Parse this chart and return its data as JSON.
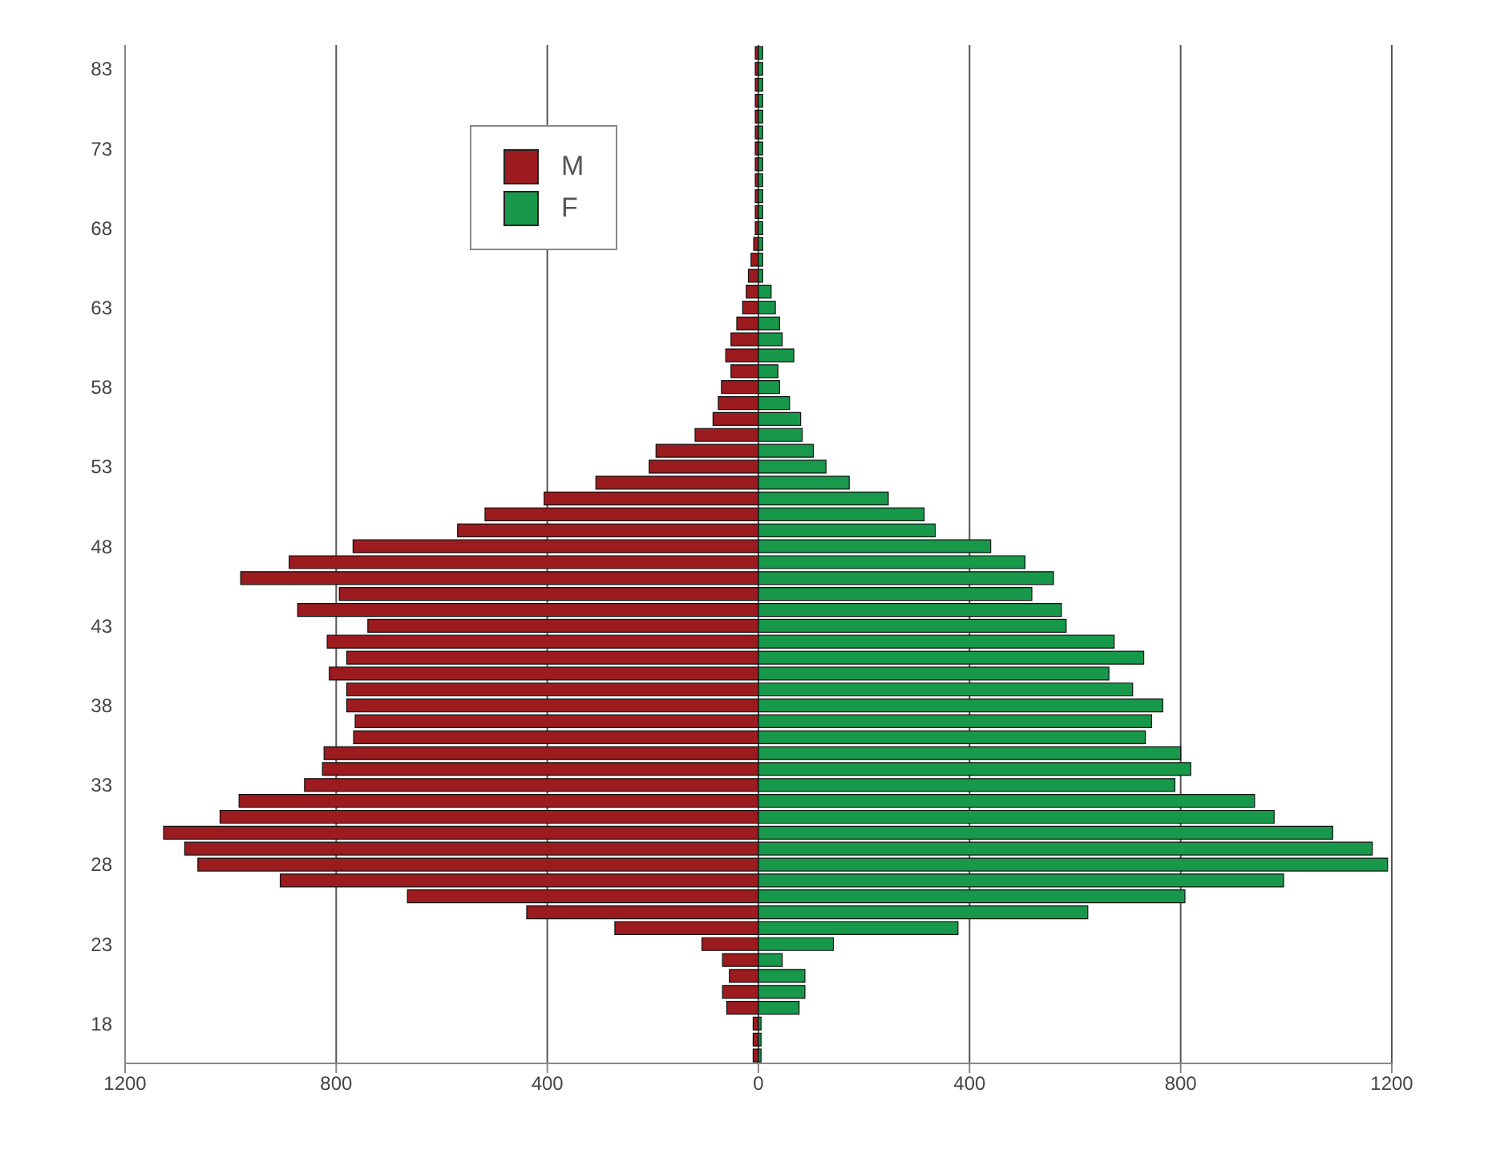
{
  "chart_data": {
    "type": "bar",
    "orientation": "horizontal",
    "stacked": true,
    "categories": [
      null,
      "83",
      null,
      null,
      null,
      null,
      "73",
      null,
      null,
      null,
      null,
      "68",
      null,
      null,
      null,
      null,
      "63",
      null,
      null,
      null,
      null,
      "58",
      null,
      null,
      null,
      null,
      "53",
      null,
      null,
      null,
      null,
      "48",
      null,
      null,
      null,
      null,
      "43",
      null,
      null,
      null,
      null,
      "38",
      null,
      null,
      null,
      null,
      "33",
      null,
      null,
      null,
      null,
      "28",
      null,
      null,
      null,
      null,
      "23",
      null,
      null,
      null,
      null,
      "18",
      null,
      null
    ],
    "series": [
      {
        "name": "M",
        "color": "#9b1b1f",
        "values": [
          -6,
          -6,
          -6,
          -6,
          -6,
          -6,
          -6,
          -6,
          -6,
          -6,
          -6,
          -6,
          -9,
          -14,
          -19,
          -23,
          -30,
          -41,
          -52,
          -62,
          -52,
          -70,
          -76,
          -86,
          -120,
          -194,
          -207,
          -308,
          -406,
          -518,
          -570,
          -768,
          -889,
          -981,
          -794,
          -873,
          -740,
          -817,
          -780,
          -813,
          -780,
          -780,
          -764,
          -767,
          -823,
          -826,
          -860,
          -984,
          -1020,
          -1127,
          -1087,
          -1062,
          -906,
          -665,
          -439,
          -272,
          -107,
          -68,
          -55,
          -68,
          -60,
          -10,
          -10,
          -10
        ]
      },
      {
        "name": "F",
        "color": "#17984a",
        "values": [
          8,
          8,
          8,
          8,
          8,
          8,
          8,
          8,
          8,
          8,
          8,
          8,
          8,
          8,
          8,
          24,
          32,
          40,
          45,
          67,
          37,
          40,
          59,
          80,
          83,
          104,
          128,
          172,
          246,
          314,
          335,
          440,
          505,
          559,
          518,
          574,
          583,
          674,
          730,
          664,
          709,
          766,
          745,
          733,
          800,
          819,
          789,
          940,
          977,
          1088,
          1163,
          1192,
          995,
          808,
          624,
          378,
          142,
          45,
          88,
          88,
          77,
          5,
          5,
          5
        ]
      }
    ],
    "xlim": [
      -1200,
      1200
    ],
    "xticks": [
      {
        "value": -1200,
        "label": "1200"
      },
      {
        "value": -800,
        "label": "800"
      },
      {
        "value": -400,
        "label": "400"
      },
      0,
      400,
      800,
      1200
    ],
    "grid": "x",
    "legend": "top left"
  }
}
